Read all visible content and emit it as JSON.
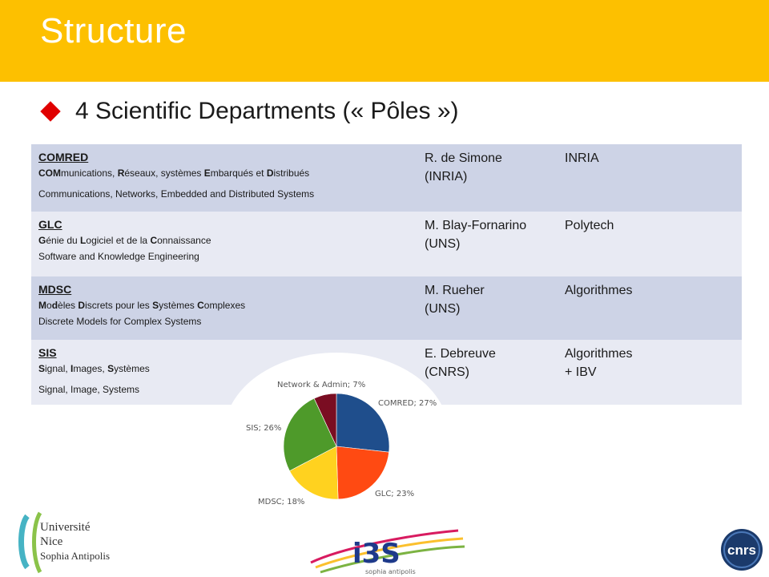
{
  "slide": {
    "title": "Structure",
    "bullet": "4 Scientific Departments (« Pôles »)"
  },
  "departments": [
    {
      "name": "COMRED",
      "french_parts": [
        [
          "COM",
          "munications, "
        ],
        [
          "R",
          "éseaux, systèmes "
        ],
        [
          "E",
          "mbarqués et "
        ],
        [
          "D",
          "istribués"
        ]
      ],
      "english": "Communications, Networks, Embedded and Distributed Systems",
      "head_line1": "R. de Simone",
      "head_line2": "(INRIA)",
      "affiliation_line1": "INRIA",
      "affiliation_line2": ""
    },
    {
      "name": "GLC",
      "french_parts": [
        [
          "G",
          "énie du "
        ],
        [
          "L",
          "ogiciel et de la "
        ],
        [
          "C",
          "onnaissance"
        ]
      ],
      "english": "Software and Knowledge Engineering",
      "head_line1": "M. Blay-Fornarino",
      "head_line2": "(UNS)",
      "affiliation_line1": "Polytech",
      "affiliation_line2": ""
    },
    {
      "name": "MDSC",
      "french_parts": [
        [
          "M",
          "o"
        ],
        [
          "d",
          "èles "
        ],
        [
          "D",
          "iscrets pour les "
        ],
        [
          "S",
          "ystèmes "
        ],
        [
          "C",
          "omplexes"
        ]
      ],
      "english": "Discrete Models for Complex Systems",
      "head_line1": "M. Rueher",
      "head_line2": "(UNS)",
      "affiliation_line1": "Algorithmes",
      "affiliation_line2": ""
    },
    {
      "name": "SIS",
      "french_parts": [
        [
          "S",
          "ignal, "
        ],
        [
          "I",
          "mages, "
        ],
        [
          "S",
          "ystèmes"
        ]
      ],
      "english": "Signal, Image, Systems",
      "head_line1": "E. Debreuve",
      "head_line2": "(CNRS)",
      "affiliation_line1": "Algorithmes",
      "affiliation_line2": "+ IBV"
    }
  ],
  "chart_data": {
    "type": "pie",
    "slices": [
      {
        "label": "COMRED; 27%",
        "name": "COMRED",
        "value": 27,
        "color": "#1f4e8c"
      },
      {
        "label": "GLC; 23%",
        "name": "GLC",
        "value": 23,
        "color": "#ff4a12"
      },
      {
        "label": "MDSC; 18%",
        "name": "MDSC",
        "value": 18,
        "color": "#ffd21f"
      },
      {
        "label": "SIS; 26%",
        "name": "SIS",
        "value": 26,
        "color": "#4e9a2a"
      },
      {
        "label": "Network & Admin; 7%",
        "name": "Network & Admin",
        "value": 7,
        "color": "#7a0d22"
      }
    ]
  },
  "logos": {
    "univ_line1": "Université",
    "univ_line2": "Nice",
    "univ_line3": "Sophia Antipolis",
    "i3s_text": "i3S",
    "i3s_sub": "sophia antipolis",
    "cnrs_text": "cnrs"
  },
  "colors": {
    "header": "#fdc000",
    "bullet": "#e00000",
    "row_dark": "#cdd3e6",
    "row_light": "#e8eaf3"
  }
}
